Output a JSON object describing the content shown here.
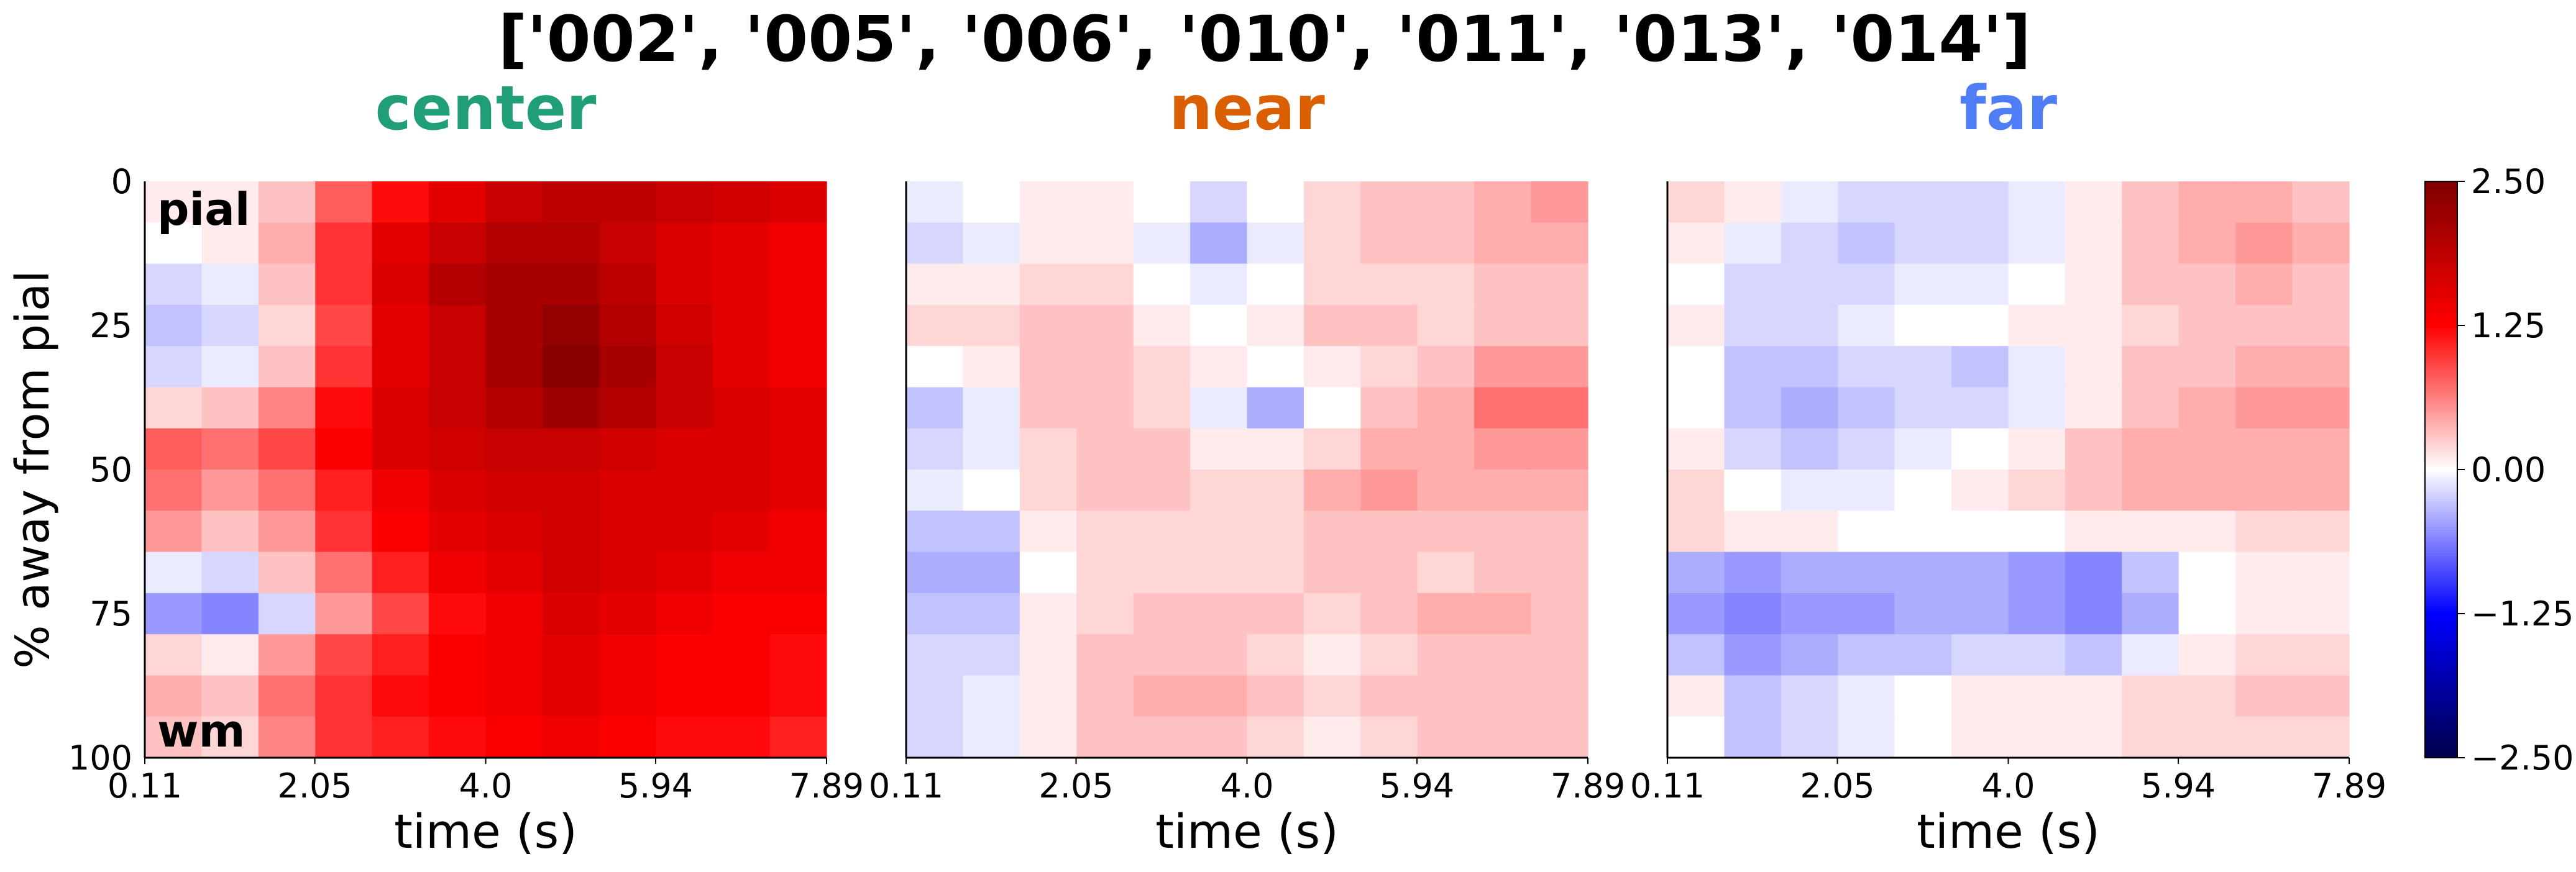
{
  "figure": {
    "suptitle": "['002', '005', '006', '010', '011', '013', '014']"
  },
  "colors": {
    "center_title": "#1f9e77",
    "near_title": "#d95f02",
    "far_title": "#4f7df5",
    "colormap": [
      "#00004c",
      "#0000ff",
      "#ffffff",
      "#ff0000",
      "#7f0000"
    ]
  },
  "chart_data": [
    {
      "type": "heatmap",
      "title": "center",
      "xlabel": "time (s)",
      "ylabel": "% away from pial",
      "x_ticks": [
        "0.11",
        "2.05",
        "4.0",
        "5.94",
        "7.89"
      ],
      "x_tick_values": [
        0.11,
        2.05,
        4.0,
        5.94,
        7.89
      ],
      "xlim": [
        0.11,
        7.89
      ],
      "y_ticks": [
        "0",
        "25",
        "50",
        "75",
        "100"
      ],
      "y_tick_values": [
        0,
        25,
        50,
        75,
        100
      ],
      "ylim": [
        0,
        100
      ],
      "annotations": [
        "pial",
        "wm"
      ],
      "clim": [
        -2.5,
        2.5
      ],
      "grid": [
        [
          0.1,
          0.1,
          0.3,
          0.8,
          1.2,
          1.5,
          1.8,
          1.9,
          1.9,
          1.8,
          1.7,
          1.6
        ],
        [
          0.0,
          0.1,
          0.4,
          1.0,
          1.5,
          1.8,
          2.0,
          2.0,
          1.8,
          1.6,
          1.5,
          1.4
        ],
        [
          -0.2,
          -0.1,
          0.3,
          1.0,
          1.6,
          2.0,
          2.1,
          2.1,
          1.9,
          1.6,
          1.5,
          1.4
        ],
        [
          -0.3,
          -0.2,
          0.2,
          0.9,
          1.5,
          1.8,
          2.1,
          2.3,
          2.0,
          1.7,
          1.5,
          1.4
        ],
        [
          -0.2,
          -0.1,
          0.3,
          1.0,
          1.5,
          1.8,
          2.1,
          2.4,
          2.1,
          1.8,
          1.5,
          1.4
        ],
        [
          0.2,
          0.3,
          0.6,
          1.2,
          1.6,
          1.8,
          2.0,
          2.2,
          2.0,
          1.8,
          1.6,
          1.5
        ],
        [
          0.8,
          0.7,
          0.9,
          1.3,
          1.6,
          1.7,
          1.8,
          1.8,
          1.7,
          1.6,
          1.6,
          1.5
        ],
        [
          0.7,
          0.5,
          0.7,
          1.1,
          1.4,
          1.6,
          1.7,
          1.7,
          1.6,
          1.6,
          1.6,
          1.5
        ],
        [
          0.5,
          0.3,
          0.5,
          1.0,
          1.3,
          1.5,
          1.6,
          1.7,
          1.6,
          1.6,
          1.5,
          1.4
        ],
        [
          -0.1,
          -0.2,
          0.3,
          0.7,
          1.1,
          1.4,
          1.5,
          1.7,
          1.6,
          1.5,
          1.4,
          1.4
        ],
        [
          -0.5,
          -0.6,
          -0.2,
          0.5,
          0.9,
          1.2,
          1.4,
          1.6,
          1.5,
          1.4,
          1.3,
          1.3
        ],
        [
          0.2,
          0.1,
          0.5,
          0.9,
          1.1,
          1.3,
          1.4,
          1.5,
          1.4,
          1.3,
          1.3,
          1.2
        ],
        [
          0.4,
          0.3,
          0.7,
          1.0,
          1.2,
          1.3,
          1.4,
          1.5,
          1.4,
          1.3,
          1.3,
          1.2
        ],
        [
          0.3,
          0.2,
          0.6,
          1.0,
          1.1,
          1.2,
          1.3,
          1.4,
          1.3,
          1.2,
          1.2,
          1.1
        ]
      ]
    },
    {
      "type": "heatmap",
      "title": "near",
      "xlabel": "time (s)",
      "x_ticks": [
        "0.11",
        "2.05",
        "4.0",
        "5.94",
        "7.89"
      ],
      "x_tick_values": [
        0.11,
        2.05,
        4.0,
        5.94,
        7.89
      ],
      "xlim": [
        0.11,
        7.89
      ],
      "ylim": [
        0,
        100
      ],
      "clim": [
        -2.5,
        2.5
      ],
      "grid": [
        [
          -0.1,
          0.0,
          0.1,
          0.1,
          0.0,
          -0.2,
          0.0,
          0.2,
          0.3,
          0.3,
          0.4,
          0.5
        ],
        [
          -0.2,
          -0.1,
          0.1,
          0.1,
          -0.1,
          -0.4,
          -0.1,
          0.2,
          0.3,
          0.3,
          0.4,
          0.4
        ],
        [
          0.1,
          0.1,
          0.2,
          0.2,
          0.0,
          -0.1,
          0.0,
          0.2,
          0.2,
          0.2,
          0.3,
          0.3
        ],
        [
          0.2,
          0.2,
          0.3,
          0.3,
          0.1,
          0.0,
          0.1,
          0.3,
          0.3,
          0.2,
          0.3,
          0.3
        ],
        [
          0.0,
          0.1,
          0.3,
          0.3,
          0.2,
          0.1,
          0.0,
          0.1,
          0.2,
          0.3,
          0.5,
          0.5
        ],
        [
          -0.3,
          -0.1,
          0.3,
          0.3,
          0.2,
          -0.1,
          -0.4,
          0.0,
          0.3,
          0.4,
          0.7,
          0.7
        ],
        [
          -0.2,
          -0.1,
          0.2,
          0.3,
          0.3,
          0.1,
          0.1,
          0.2,
          0.4,
          0.4,
          0.5,
          0.5
        ],
        [
          -0.1,
          0.0,
          0.2,
          0.3,
          0.3,
          0.2,
          0.2,
          0.4,
          0.5,
          0.4,
          0.4,
          0.4
        ],
        [
          -0.3,
          -0.3,
          0.1,
          0.2,
          0.2,
          0.2,
          0.2,
          0.3,
          0.3,
          0.3,
          0.3,
          0.3
        ],
        [
          -0.4,
          -0.4,
          0.0,
          0.2,
          0.2,
          0.2,
          0.2,
          0.3,
          0.3,
          0.2,
          0.3,
          0.3
        ],
        [
          -0.3,
          -0.3,
          0.1,
          0.2,
          0.3,
          0.3,
          0.3,
          0.2,
          0.3,
          0.4,
          0.4,
          0.3
        ],
        [
          -0.2,
          -0.2,
          0.1,
          0.3,
          0.3,
          0.3,
          0.2,
          0.1,
          0.2,
          0.3,
          0.3,
          0.3
        ],
        [
          -0.2,
          -0.1,
          0.1,
          0.3,
          0.4,
          0.4,
          0.3,
          0.2,
          0.3,
          0.3,
          0.3,
          0.3
        ],
        [
          -0.2,
          -0.1,
          0.1,
          0.3,
          0.3,
          0.3,
          0.2,
          0.1,
          0.2,
          0.3,
          0.3,
          0.3
        ]
      ]
    },
    {
      "type": "heatmap",
      "title": "far",
      "xlabel": "time (s)",
      "x_ticks": [
        "0.11",
        "2.05",
        "4.0",
        "5.94",
        "7.89"
      ],
      "x_tick_values": [
        0.11,
        2.05,
        4.0,
        5.94,
        7.89
      ],
      "xlim": [
        0.11,
        7.89
      ],
      "ylim": [
        0,
        100
      ],
      "clim": [
        -2.5,
        2.5
      ],
      "grid": [
        [
          0.2,
          0.1,
          -0.1,
          -0.2,
          -0.2,
          -0.2,
          -0.1,
          0.1,
          0.3,
          0.4,
          0.4,
          0.3
        ],
        [
          0.1,
          -0.1,
          -0.2,
          -0.3,
          -0.2,
          -0.2,
          -0.1,
          0.1,
          0.3,
          0.4,
          0.5,
          0.4
        ],
        [
          0.0,
          -0.2,
          -0.2,
          -0.2,
          -0.1,
          -0.1,
          0.0,
          0.1,
          0.3,
          0.3,
          0.4,
          0.3
        ],
        [
          0.1,
          -0.2,
          -0.2,
          -0.1,
          0.0,
          0.0,
          0.1,
          0.1,
          0.2,
          0.3,
          0.3,
          0.3
        ],
        [
          0.0,
          -0.3,
          -0.3,
          -0.2,
          -0.2,
          -0.3,
          -0.1,
          0.1,
          0.3,
          0.3,
          0.4,
          0.4
        ],
        [
          0.0,
          -0.3,
          -0.4,
          -0.3,
          -0.2,
          -0.2,
          -0.1,
          0.1,
          0.3,
          0.4,
          0.5,
          0.5
        ],
        [
          0.1,
          -0.2,
          -0.3,
          -0.2,
          -0.1,
          0.0,
          0.1,
          0.3,
          0.4,
          0.4,
          0.4,
          0.4
        ],
        [
          0.2,
          0.0,
          -0.1,
          -0.1,
          0.0,
          0.1,
          0.2,
          0.3,
          0.4,
          0.4,
          0.4,
          0.4
        ],
        [
          0.2,
          0.1,
          0.1,
          0.0,
          0.0,
          0.0,
          0.0,
          0.1,
          0.1,
          0.1,
          0.2,
          0.2
        ],
        [
          -0.4,
          -0.5,
          -0.4,
          -0.4,
          -0.4,
          -0.4,
          -0.5,
          -0.6,
          -0.3,
          0.0,
          0.1,
          0.1
        ],
        [
          -0.5,
          -0.6,
          -0.5,
          -0.5,
          -0.4,
          -0.4,
          -0.5,
          -0.6,
          -0.4,
          0.0,
          0.1,
          0.1
        ],
        [
          -0.3,
          -0.5,
          -0.4,
          -0.3,
          -0.3,
          -0.2,
          -0.2,
          -0.3,
          -0.1,
          0.1,
          0.2,
          0.2
        ],
        [
          0.1,
          -0.3,
          -0.2,
          -0.1,
          0.0,
          0.1,
          0.1,
          0.1,
          0.2,
          0.2,
          0.3,
          0.3
        ],
        [
          0.0,
          -0.3,
          -0.2,
          -0.1,
          0.0,
          0.1,
          0.1,
          0.1,
          0.2,
          0.2,
          0.2,
          0.2
        ]
      ]
    }
  ],
  "colorbar": {
    "ticks": [
      "2.50",
      "1.25",
      "0.00",
      "−1.25",
      "−2.50"
    ],
    "tick_values": [
      2.5,
      1.25,
      0.0,
      -1.25,
      -2.5
    ]
  }
}
